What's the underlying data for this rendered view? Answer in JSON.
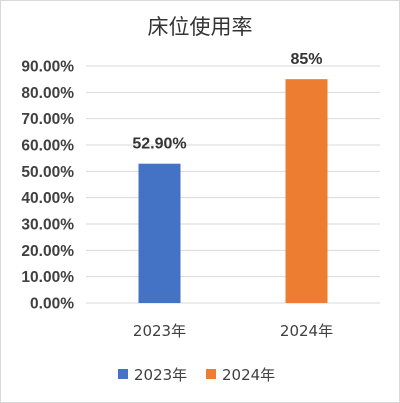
{
  "chart_data": {
    "type": "bar",
    "title": "床位使用率",
    "xlabel": "",
    "ylabel": "",
    "categories": [
      "2023年",
      "2024年"
    ],
    "series": [
      {
        "name": "2023年",
        "values": [
          52.9,
          null
        ],
        "color": "#4472C4",
        "data_label": "52.90%"
      },
      {
        "name": "2024年",
        "values": [
          null,
          85
        ],
        "color": "#ED7D31",
        "data_label": "85%"
      }
    ],
    "ylim": [
      0,
      90
    ],
    "y_ticks": [
      "0.00%",
      "10.00%",
      "20.00%",
      "30.00%",
      "40.00%",
      "50.00%",
      "60.00%",
      "70.00%",
      "80.00%",
      "90.00%"
    ],
    "grid": true,
    "legend_position": "bottom"
  }
}
